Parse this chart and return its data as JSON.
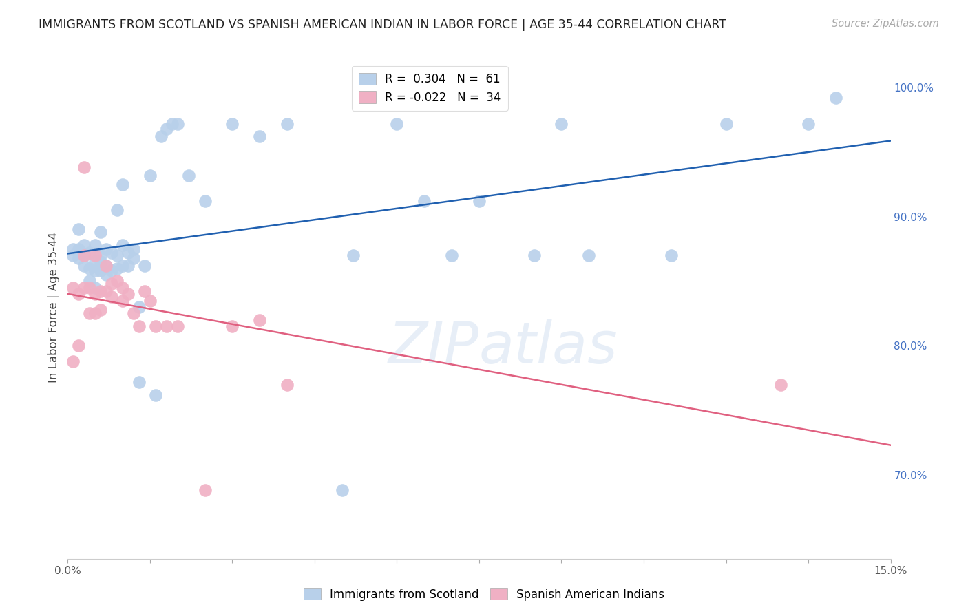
{
  "title": "IMMIGRANTS FROM SCOTLAND VS SPANISH AMERICAN INDIAN IN LABOR FORCE | AGE 35-44 CORRELATION CHART",
  "source": "Source: ZipAtlas.com",
  "ylabel": "In Labor Force | Age 35-44",
  "xlim": [
    0.0,
    0.15
  ],
  "ylim": [
    0.635,
    1.025
  ],
  "xticks": [
    0.0,
    0.015,
    0.03,
    0.045,
    0.06,
    0.075,
    0.09,
    0.105,
    0.12,
    0.135,
    0.15
  ],
  "xtick_labels_show": [
    "0.0%",
    "",
    "",
    "",
    "",
    "",
    "",
    "",
    "",
    "",
    "15.0%"
  ],
  "yticks": [
    0.7,
    0.8,
    0.9,
    1.0
  ],
  "ytick_labels": [
    "70.0%",
    "80.0%",
    "90.0%",
    "100.0%"
  ],
  "grid_color": "#cccccc",
  "background_color": "#ffffff",
  "watermark": "ZIPatlas",
  "series": [
    {
      "name": "Immigrants from Scotland",
      "R": 0.304,
      "N": 61,
      "color": "#b8d0ea",
      "edge_color": "#b8d0ea",
      "line_color": "#2060b0",
      "x": [
        0.001,
        0.001,
        0.002,
        0.002,
        0.002,
        0.003,
        0.003,
        0.003,
        0.004,
        0.004,
        0.004,
        0.005,
        0.005,
        0.005,
        0.005,
        0.006,
        0.006,
        0.006,
        0.006,
        0.007,
        0.007,
        0.007,
        0.008,
        0.008,
        0.009,
        0.009,
        0.009,
        0.01,
        0.01,
        0.01,
        0.011,
        0.011,
        0.012,
        0.012,
        0.013,
        0.013,
        0.014,
        0.015,
        0.016,
        0.017,
        0.018,
        0.019,
        0.02,
        0.022,
        0.025,
        0.03,
        0.035,
        0.04,
        0.05,
        0.052,
        0.06,
        0.065,
        0.07,
        0.075,
        0.085,
        0.09,
        0.095,
        0.11,
        0.12,
        0.135,
        0.14
      ],
      "y": [
        0.87,
        0.875,
        0.868,
        0.875,
        0.89,
        0.862,
        0.87,
        0.878,
        0.85,
        0.86,
        0.872,
        0.845,
        0.858,
        0.865,
        0.878,
        0.858,
        0.865,
        0.87,
        0.888,
        0.855,
        0.862,
        0.875,
        0.858,
        0.872,
        0.86,
        0.87,
        0.905,
        0.862,
        0.878,
        0.925,
        0.862,
        0.872,
        0.868,
        0.875,
        0.772,
        0.83,
        0.862,
        0.932,
        0.762,
        0.962,
        0.968,
        0.972,
        0.972,
        0.932,
        0.912,
        0.972,
        0.962,
        0.972,
        0.688,
        0.87,
        0.972,
        0.912,
        0.87,
        0.912,
        0.87,
        0.972,
        0.87,
        0.87,
        0.972,
        0.972,
        0.992
      ]
    },
    {
      "name": "Spanish American Indians",
      "R": -0.022,
      "N": 34,
      "color": "#f0b0c4",
      "edge_color": "#f0b0c4",
      "line_color": "#e06080",
      "x": [
        0.001,
        0.001,
        0.002,
        0.002,
        0.003,
        0.003,
        0.003,
        0.004,
        0.004,
        0.005,
        0.005,
        0.005,
        0.006,
        0.006,
        0.007,
        0.007,
        0.008,
        0.008,
        0.009,
        0.01,
        0.01,
        0.011,
        0.012,
        0.013,
        0.014,
        0.015,
        0.016,
        0.018,
        0.02,
        0.025,
        0.03,
        0.035,
        0.04,
        0.13
      ],
      "y": [
        0.845,
        0.788,
        0.8,
        0.84,
        0.845,
        0.87,
        0.938,
        0.825,
        0.845,
        0.825,
        0.84,
        0.87,
        0.828,
        0.842,
        0.842,
        0.862,
        0.838,
        0.848,
        0.85,
        0.835,
        0.845,
        0.84,
        0.825,
        0.815,
        0.842,
        0.835,
        0.815,
        0.815,
        0.815,
        0.688,
        0.815,
        0.82,
        0.77,
        0.77
      ]
    }
  ],
  "title_fontsize": 12.5,
  "axis_label_fontsize": 12,
  "tick_fontsize": 11,
  "legend_fontsize": 12,
  "source_fontsize": 10.5
}
